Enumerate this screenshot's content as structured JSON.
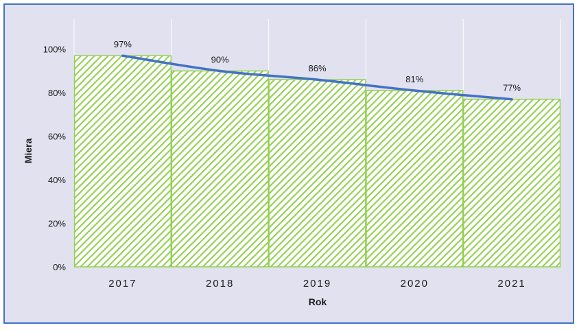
{
  "chart_data": {
    "type": "bar",
    "categories": [
      "2017",
      "2018",
      "2019",
      "2020",
      "2021"
    ],
    "series": [
      {
        "values": [
          97,
          90,
          86,
          81,
          77
        ],
        "data_labels": [
          "97%",
          "90%",
          "86%",
          "81%",
          "77%"
        ]
      }
    ],
    "trendline": {
      "type": "polynomial",
      "color": "#4472c4"
    },
    "xlabel": "Rok",
    "ylabel": "Miera",
    "ylim": [
      0,
      110
    ],
    "yticks": [
      0,
      20,
      40,
      60,
      80,
      100
    ],
    "ytick_labels": [
      "0%",
      "20%",
      "40%",
      "60%",
      "80%",
      "100%"
    ],
    "grid": "vertical",
    "bar_fill": "diagonal-hatch",
    "bar_color": "#92d050",
    "background": "#e1e1f0",
    "border_color": "#4472c4"
  }
}
